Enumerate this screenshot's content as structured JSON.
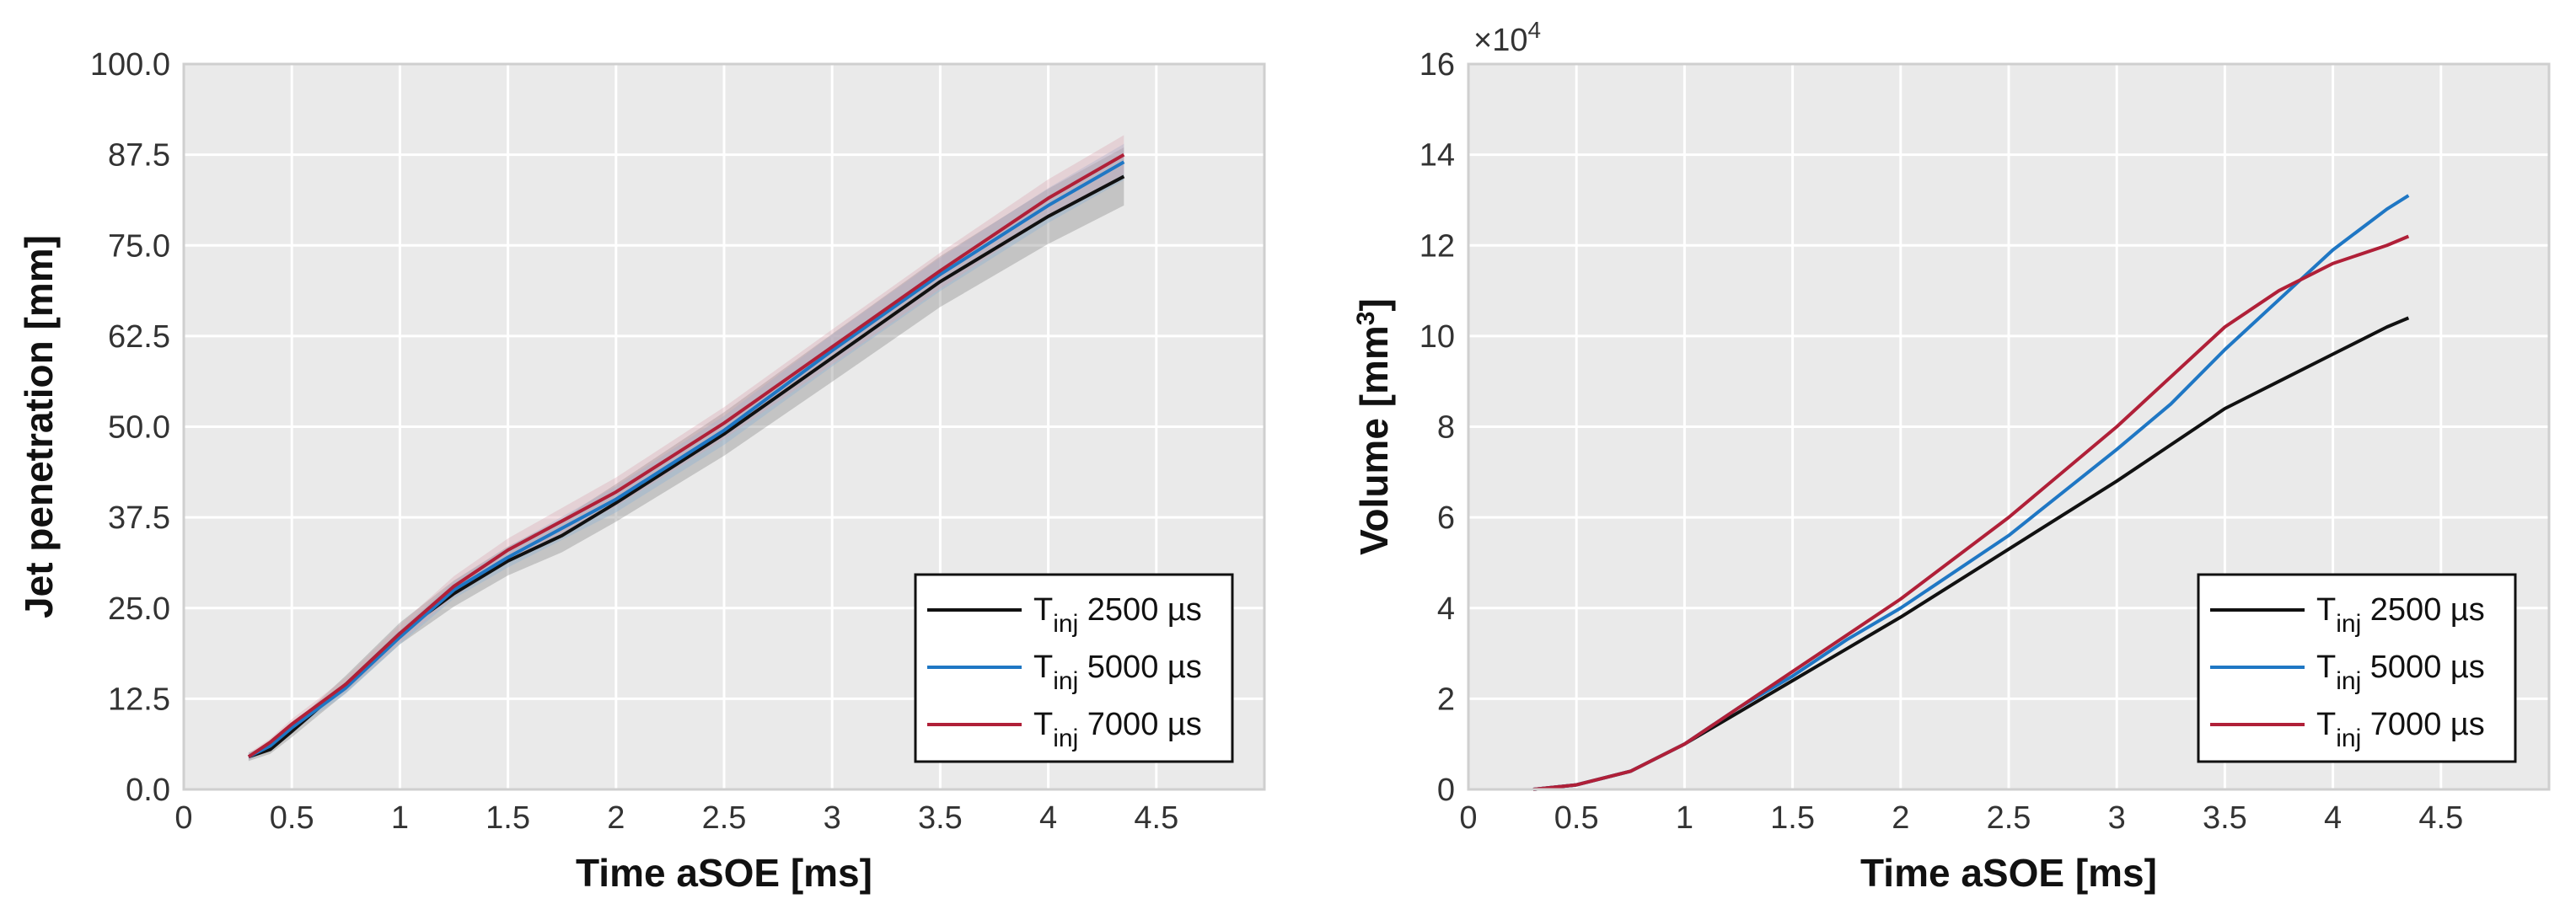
{
  "chart_data": [
    {
      "type": "line",
      "title": "",
      "xlabel": "Time aSOE [ms]",
      "ylabel": "Jet penetration [mm]",
      "xlim": [
        0,
        5
      ],
      "ylim": [
        0,
        100
      ],
      "xticks": [
        0,
        0.5,
        1,
        1.5,
        2,
        2.5,
        3,
        3.5,
        4,
        4.5
      ],
      "xtick_labels": [
        "0",
        "0.5",
        "1",
        "1.5",
        "2",
        "2.5",
        "3",
        "3.5",
        "4",
        "4.5"
      ],
      "yticks": [
        0,
        12.5,
        25,
        37.5,
        50,
        62.5,
        75,
        87.5,
        100
      ],
      "ytick_labels": [
        "0.0",
        "12.5",
        "25.0",
        "37.5",
        "50.0",
        "62.5",
        "75.0",
        "87.5",
        "100.0"
      ],
      "grid": true,
      "legend_position": "bottom-right",
      "series": [
        {
          "name": "T_inj 2500 µs",
          "legend_main": "T",
          "legend_sub": "inj",
          "legend_rest": " 2500 µs",
          "color": "#111111",
          "band_color": "#7f7f7f",
          "band_width": [
            0.6,
            0.6,
            0.8,
            1.2,
            1.5,
            1.8,
            2.0,
            2.3,
            2.6,
            3.0,
            3.3,
            3.5,
            3.8,
            4.0
          ],
          "x": [
            0.3,
            0.4,
            0.5,
            0.75,
            1.0,
            1.25,
            1.5,
            1.75,
            2.0,
            2.5,
            3.0,
            3.5,
            4.0,
            4.35
          ],
          "y": [
            4.5,
            5.5,
            8.0,
            14.5,
            21.5,
            27.0,
            31.5,
            35.0,
            39.5,
            49.0,
            59.5,
            70.0,
            79.0,
            84.5
          ]
        },
        {
          "name": "T_inj 5000 µs",
          "legend_main": "T",
          "legend_sub": "inj",
          "legend_rest": " 5000 µs",
          "color": "#1f77c4",
          "band_color": "#8ab2d6",
          "band_width": [
            0.5,
            0.5,
            0.6,
            0.8,
            1.0,
            1.2,
            1.4,
            1.6,
            1.8,
            2.0,
            2.2,
            2.3,
            2.4,
            2.5
          ],
          "x": [
            0.3,
            0.4,
            0.5,
            0.75,
            1.0,
            1.25,
            1.5,
            1.75,
            2.0,
            2.5,
            3.0,
            3.5,
            4.0,
            4.35
          ],
          "y": [
            4.5,
            6.0,
            8.5,
            14.0,
            21.0,
            27.5,
            32.0,
            36.0,
            40.0,
            49.5,
            60.5,
            71.0,
            80.5,
            86.5
          ]
        },
        {
          "name": "T_inj 7000 µs",
          "legend_main": "T",
          "legend_sub": "inj",
          "legend_rest": " 7000 µs",
          "color": "#b02038",
          "band_color": "#d9a3b0",
          "band_width": [
            0.5,
            0.5,
            0.7,
            0.9,
            1.2,
            1.4,
            1.6,
            1.8,
            2.0,
            2.2,
            2.4,
            2.5,
            2.6,
            2.7
          ],
          "x": [
            0.3,
            0.4,
            0.5,
            0.75,
            1.0,
            1.25,
            1.5,
            1.75,
            2.0,
            2.5,
            3.0,
            3.5,
            4.0,
            4.35
          ],
          "y": [
            4.5,
            6.5,
            9.0,
            14.5,
            21.5,
            28.0,
            33.0,
            37.0,
            41.0,
            50.5,
            61.0,
            71.5,
            81.5,
            87.5
          ]
        }
      ]
    },
    {
      "type": "line",
      "title": "",
      "xlabel": "Time aSOE [ms]",
      "ylabel_main": "Volume [mm",
      "ylabel_sup": "3",
      "ylabel_end": "]",
      "scale_base": "×10",
      "scale_exp": "4",
      "xlim": [
        0,
        5
      ],
      "ylim": [
        0,
        16
      ],
      "xticks": [
        0,
        0.5,
        1,
        1.5,
        2,
        2.5,
        3,
        3.5,
        4,
        4.5
      ],
      "xtick_labels": [
        "0",
        "0.5",
        "1",
        "1.5",
        "2",
        "2.5",
        "3",
        "3.5",
        "4",
        "4.5"
      ],
      "yticks": [
        0,
        2,
        4,
        6,
        8,
        10,
        12,
        14,
        16
      ],
      "ytick_labels": [
        "0",
        "2",
        "4",
        "6",
        "8",
        "10",
        "12",
        "14",
        "16"
      ],
      "grid": true,
      "legend_position": "bottom-right",
      "series": [
        {
          "name": "T_inj 2500 µs",
          "legend_main": "T",
          "legend_sub": "inj",
          "legend_rest": " 2500 µs",
          "color": "#111111",
          "x": [
            0.3,
            0.5,
            0.75,
            1.0,
            1.25,
            1.5,
            1.75,
            2.0,
            2.5,
            3.0,
            3.25,
            3.5,
            3.75,
            4.0,
            4.25,
            4.35
          ],
          "y": [
            0.0,
            0.1,
            0.4,
            1.0,
            1.7,
            2.4,
            3.1,
            3.8,
            5.3,
            6.8,
            7.6,
            8.4,
            9.0,
            9.6,
            10.2,
            10.4
          ]
        },
        {
          "name": "T_inj 5000 µs",
          "legend_main": "T",
          "legend_sub": "inj",
          "legend_rest": " 5000 µs",
          "color": "#1f77c4",
          "x": [
            0.3,
            0.5,
            0.75,
            1.0,
            1.25,
            1.5,
            1.75,
            2.0,
            2.5,
            3.0,
            3.25,
            3.5,
            3.75,
            4.0,
            4.25,
            4.35
          ],
          "y": [
            0.0,
            0.1,
            0.4,
            1.0,
            1.8,
            2.5,
            3.3,
            4.0,
            5.6,
            7.5,
            8.5,
            9.7,
            10.8,
            11.9,
            12.8,
            13.1
          ]
        },
        {
          "name": "T_inj 7000 µs",
          "legend_main": "T",
          "legend_sub": "inj",
          "legend_rest": " 7000 µs",
          "color": "#b02038",
          "x": [
            0.3,
            0.5,
            0.75,
            1.0,
            1.25,
            1.5,
            1.75,
            2.0,
            2.5,
            3.0,
            3.25,
            3.5,
            3.75,
            4.0,
            4.25,
            4.35
          ],
          "y": [
            0.0,
            0.1,
            0.4,
            1.0,
            1.8,
            2.6,
            3.4,
            4.2,
            6.0,
            8.0,
            9.1,
            10.2,
            11.0,
            11.6,
            12.0,
            12.2
          ]
        }
      ]
    }
  ]
}
